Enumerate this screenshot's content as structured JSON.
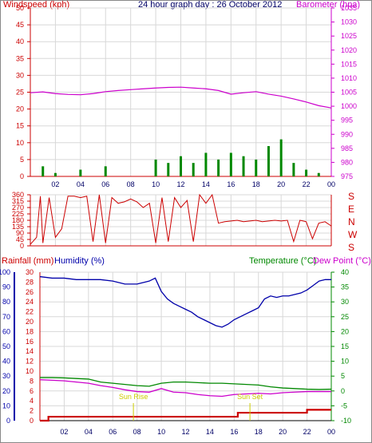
{
  "header": {
    "left_label": "Windspeed (kph)",
    "center_title": "24 hour graph day : 26 October 2012",
    "right_label": "Barometer (hpa)"
  },
  "lower_header": {
    "rainfall_label": "Rainfall (mm)",
    "humidity_label": "Humidity (%)",
    "temperature_label": "Temperature (°C)",
    "dewpoint_label": "Dew Point (°C)"
  },
  "annotations": {
    "sunrise": "Sun Rise",
    "sunset": "Sun Set"
  },
  "colors": {
    "windspeed": "#cc0000",
    "barometer": "#cc00cc",
    "gust": "#008800",
    "direction": "#cc0000",
    "rainfall": "#cc0000",
    "humidity": "#0000aa",
    "temperature": "#008800",
    "dewpoint": "#cc00cc",
    "sunlabel": "#cccc00"
  },
  "chart_data": [
    {
      "type": "line",
      "xlabel": "",
      "x_ticks": [
        "02",
        "04",
        "06",
        "08",
        "10",
        "12",
        "14",
        "16",
        "18",
        "20",
        "22",
        "00"
      ],
      "y_ticks_left": [
        0,
        5,
        10,
        15,
        20,
        25,
        30,
        35,
        40,
        45,
        50
      ],
      "y_ticks_right": [
        975,
        980,
        985,
        990,
        995,
        1000,
        1005,
        1010,
        1015,
        1020,
        1025,
        1030,
        1035
      ],
      "ylim_left": [
        0,
        50
      ],
      "ylim_right": [
        975,
        1035
      ],
      "series": [
        {
          "name": "Barometer (hpa)",
          "axis": "right",
          "x": [
            0,
            1,
            2,
            3,
            4,
            5,
            6,
            7,
            8,
            9,
            10,
            11,
            12,
            13,
            14,
            15,
            16,
            17,
            18,
            19,
            20,
            21,
            22,
            23,
            24
          ],
          "values": [
            1004.8,
            1005.1,
            1004.5,
            1004.2,
            1004.1,
            1004.5,
            1005.2,
            1005.6,
            1005.9,
            1006.2,
            1006.5,
            1006.7,
            1006.8,
            1006.5,
            1006.2,
            1005.6,
            1004.3,
            1004.8,
            1005.2,
            1004.3,
            1003.6,
            1002.6,
            1001.5,
            1000.2,
            999.4
          ]
        },
        {
          "name": "Windspeed (kph)",
          "axis": "left",
          "x": [
            0,
            1,
            2,
            3,
            4,
            5,
            6,
            7,
            8,
            9,
            10,
            11,
            12,
            13,
            14,
            15,
            16,
            17,
            18,
            19,
            20,
            21,
            22,
            23,
            24
          ],
          "values": [
            0,
            2,
            1,
            0,
            1,
            0,
            2,
            0,
            0,
            0,
            3,
            2,
            3,
            2,
            3,
            2,
            4,
            3,
            2,
            4,
            3,
            2,
            1,
            1,
            0
          ]
        },
        {
          "name": "Gust",
          "axis": "left",
          "x": [
            0,
            1,
            2,
            3,
            4,
            5,
            6,
            7,
            8,
            9,
            10,
            11,
            12,
            13,
            14,
            15,
            16,
            17,
            18,
            19,
            20,
            21,
            22,
            23,
            24
          ],
          "values": [
            0,
            3,
            1,
            0,
            2,
            0,
            3,
            0,
            0,
            0,
            5,
            4,
            6,
            4,
            7,
            5,
            7,
            6,
            5,
            9,
            11,
            4,
            2,
            1,
            0
          ]
        }
      ]
    },
    {
      "type": "line",
      "y_ticks_left": [
        0,
        45,
        90,
        135,
        180,
        225,
        270,
        315,
        360
      ],
      "y_ticks_right": [
        "S",
        "E",
        "N",
        "W",
        "S"
      ],
      "ylim_left": [
        0,
        360
      ],
      "series": [
        {
          "name": "Wind Direction",
          "x": [
            0,
            0.5,
            0.8,
            1,
            1.5,
            2,
            2.5,
            3,
            3.5,
            4,
            4.5,
            5,
            5.5,
            6,
            6.5,
            7,
            7.5,
            8,
            8.5,
            9,
            9.5,
            10,
            10.5,
            11,
            11.5,
            12,
            12.5,
            13,
            13.5,
            14,
            14.5,
            15,
            15.5,
            16,
            16.5,
            17,
            17.5,
            18,
            18.5,
            19,
            19.5,
            20,
            20.5,
            21,
            21.5,
            22,
            22.5,
            23,
            23.5,
            24
          ],
          "values": [
            10,
            60,
            350,
            20,
            340,
            60,
            120,
            350,
            350,
            340,
            350,
            30,
            360,
            20,
            340,
            300,
            310,
            330,
            310,
            270,
            300,
            20,
            340,
            30,
            340,
            270,
            320,
            30,
            360,
            300,
            360,
            160,
            170,
            175,
            180,
            170,
            175,
            180,
            170,
            175,
            180,
            175,
            180,
            30,
            180,
            170,
            50,
            160,
            170,
            140
          ]
        }
      ]
    },
    {
      "type": "line",
      "x_ticks": [
        "02",
        "04",
        "06",
        "08",
        "10",
        "12",
        "14",
        "16",
        "18",
        "20",
        "22",
        "00"
      ],
      "y_ticks_left": [
        0,
        10,
        20,
        30,
        40,
        50,
        60,
        70,
        80,
        90,
        100
      ],
      "y_ticks_rain": [
        0,
        2,
        4,
        6,
        8,
        10,
        12,
        14,
        16,
        18,
        20,
        22,
        24,
        26,
        28,
        30
      ],
      "y_ticks_right": [
        -10,
        -5,
        0,
        5,
        10,
        15,
        20,
        25,
        30,
        35,
        40
      ],
      "ylim_left": [
        0,
        100
      ],
      "ylim_right": [
        -10,
        40
      ],
      "series": [
        {
          "name": "Humidity (%)",
          "axis": "left",
          "x": [
            0,
            1,
            2,
            3,
            4,
            5,
            6,
            7,
            8,
            9,
            9.5,
            10,
            10.5,
            11,
            11.5,
            12,
            12.5,
            13,
            13.5,
            14,
            14.5,
            15,
            15.5,
            16,
            16.5,
            17,
            17.5,
            18,
            18.5,
            19,
            19.5,
            20,
            20.5,
            21,
            21.5,
            22,
            22.5,
            23,
            23.5,
            24
          ],
          "values": [
            97,
            96,
            96,
            95,
            95,
            95,
            94,
            92,
            92,
            94,
            96,
            87,
            82,
            79,
            77,
            75,
            73,
            70,
            68,
            66,
            64,
            63,
            65,
            68,
            70,
            72,
            74,
            76,
            82,
            84,
            83,
            84,
            84,
            85,
            86,
            88,
            91,
            94,
            95,
            95
          ]
        },
        {
          "name": "Temperature (°C)",
          "axis": "right",
          "x": [
            0,
            1,
            2,
            3,
            4,
            5,
            6,
            7,
            8,
            9,
            10,
            11,
            12,
            13,
            14,
            15,
            16,
            17,
            18,
            19,
            20,
            21,
            22,
            23,
            24
          ],
          "values": [
            4.5,
            4.5,
            4.4,
            4.2,
            4.0,
            3.0,
            2.6,
            2.2,
            1.8,
            1.6,
            2.6,
            3.0,
            3.0,
            2.8,
            2.6,
            2.6,
            2.4,
            2.2,
            2.0,
            1.4,
            1.0,
            0.8,
            0.6,
            0.5,
            0.6
          ]
        },
        {
          "name": "Dew Point (°C)",
          "axis": "right",
          "x": [
            0,
            1,
            2,
            3,
            4,
            5,
            6,
            7,
            8,
            9,
            10,
            11,
            12,
            13,
            14,
            15,
            16,
            17,
            18,
            19,
            20,
            21,
            22,
            23,
            24
          ],
          "values": [
            3.8,
            3.6,
            3.4,
            3.0,
            2.6,
            1.8,
            1.2,
            0.4,
            -0.2,
            -0.4,
            0.8,
            -0.4,
            -0.6,
            -1.2,
            -1.6,
            -1.8,
            -1.2,
            -1.0,
            -0.8,
            -1.0,
            -0.6,
            -0.4,
            -0.2,
            -0.2,
            -0.2
          ]
        },
        {
          "name": "Rainfall (mm)",
          "axis": "rain",
          "x": [
            0,
            0.5,
            0.7,
            16,
            16.3,
            21,
            21.5,
            22,
            22.5,
            23,
            24
          ],
          "values": [
            0,
            0,
            0.8,
            0.8,
            1.6,
            1.6,
            1.6,
            2.2,
            2.2,
            2.2,
            2.2
          ]
        }
      ],
      "sunrise_hour": 7.7,
      "sunset_hour": 17.3
    }
  ]
}
